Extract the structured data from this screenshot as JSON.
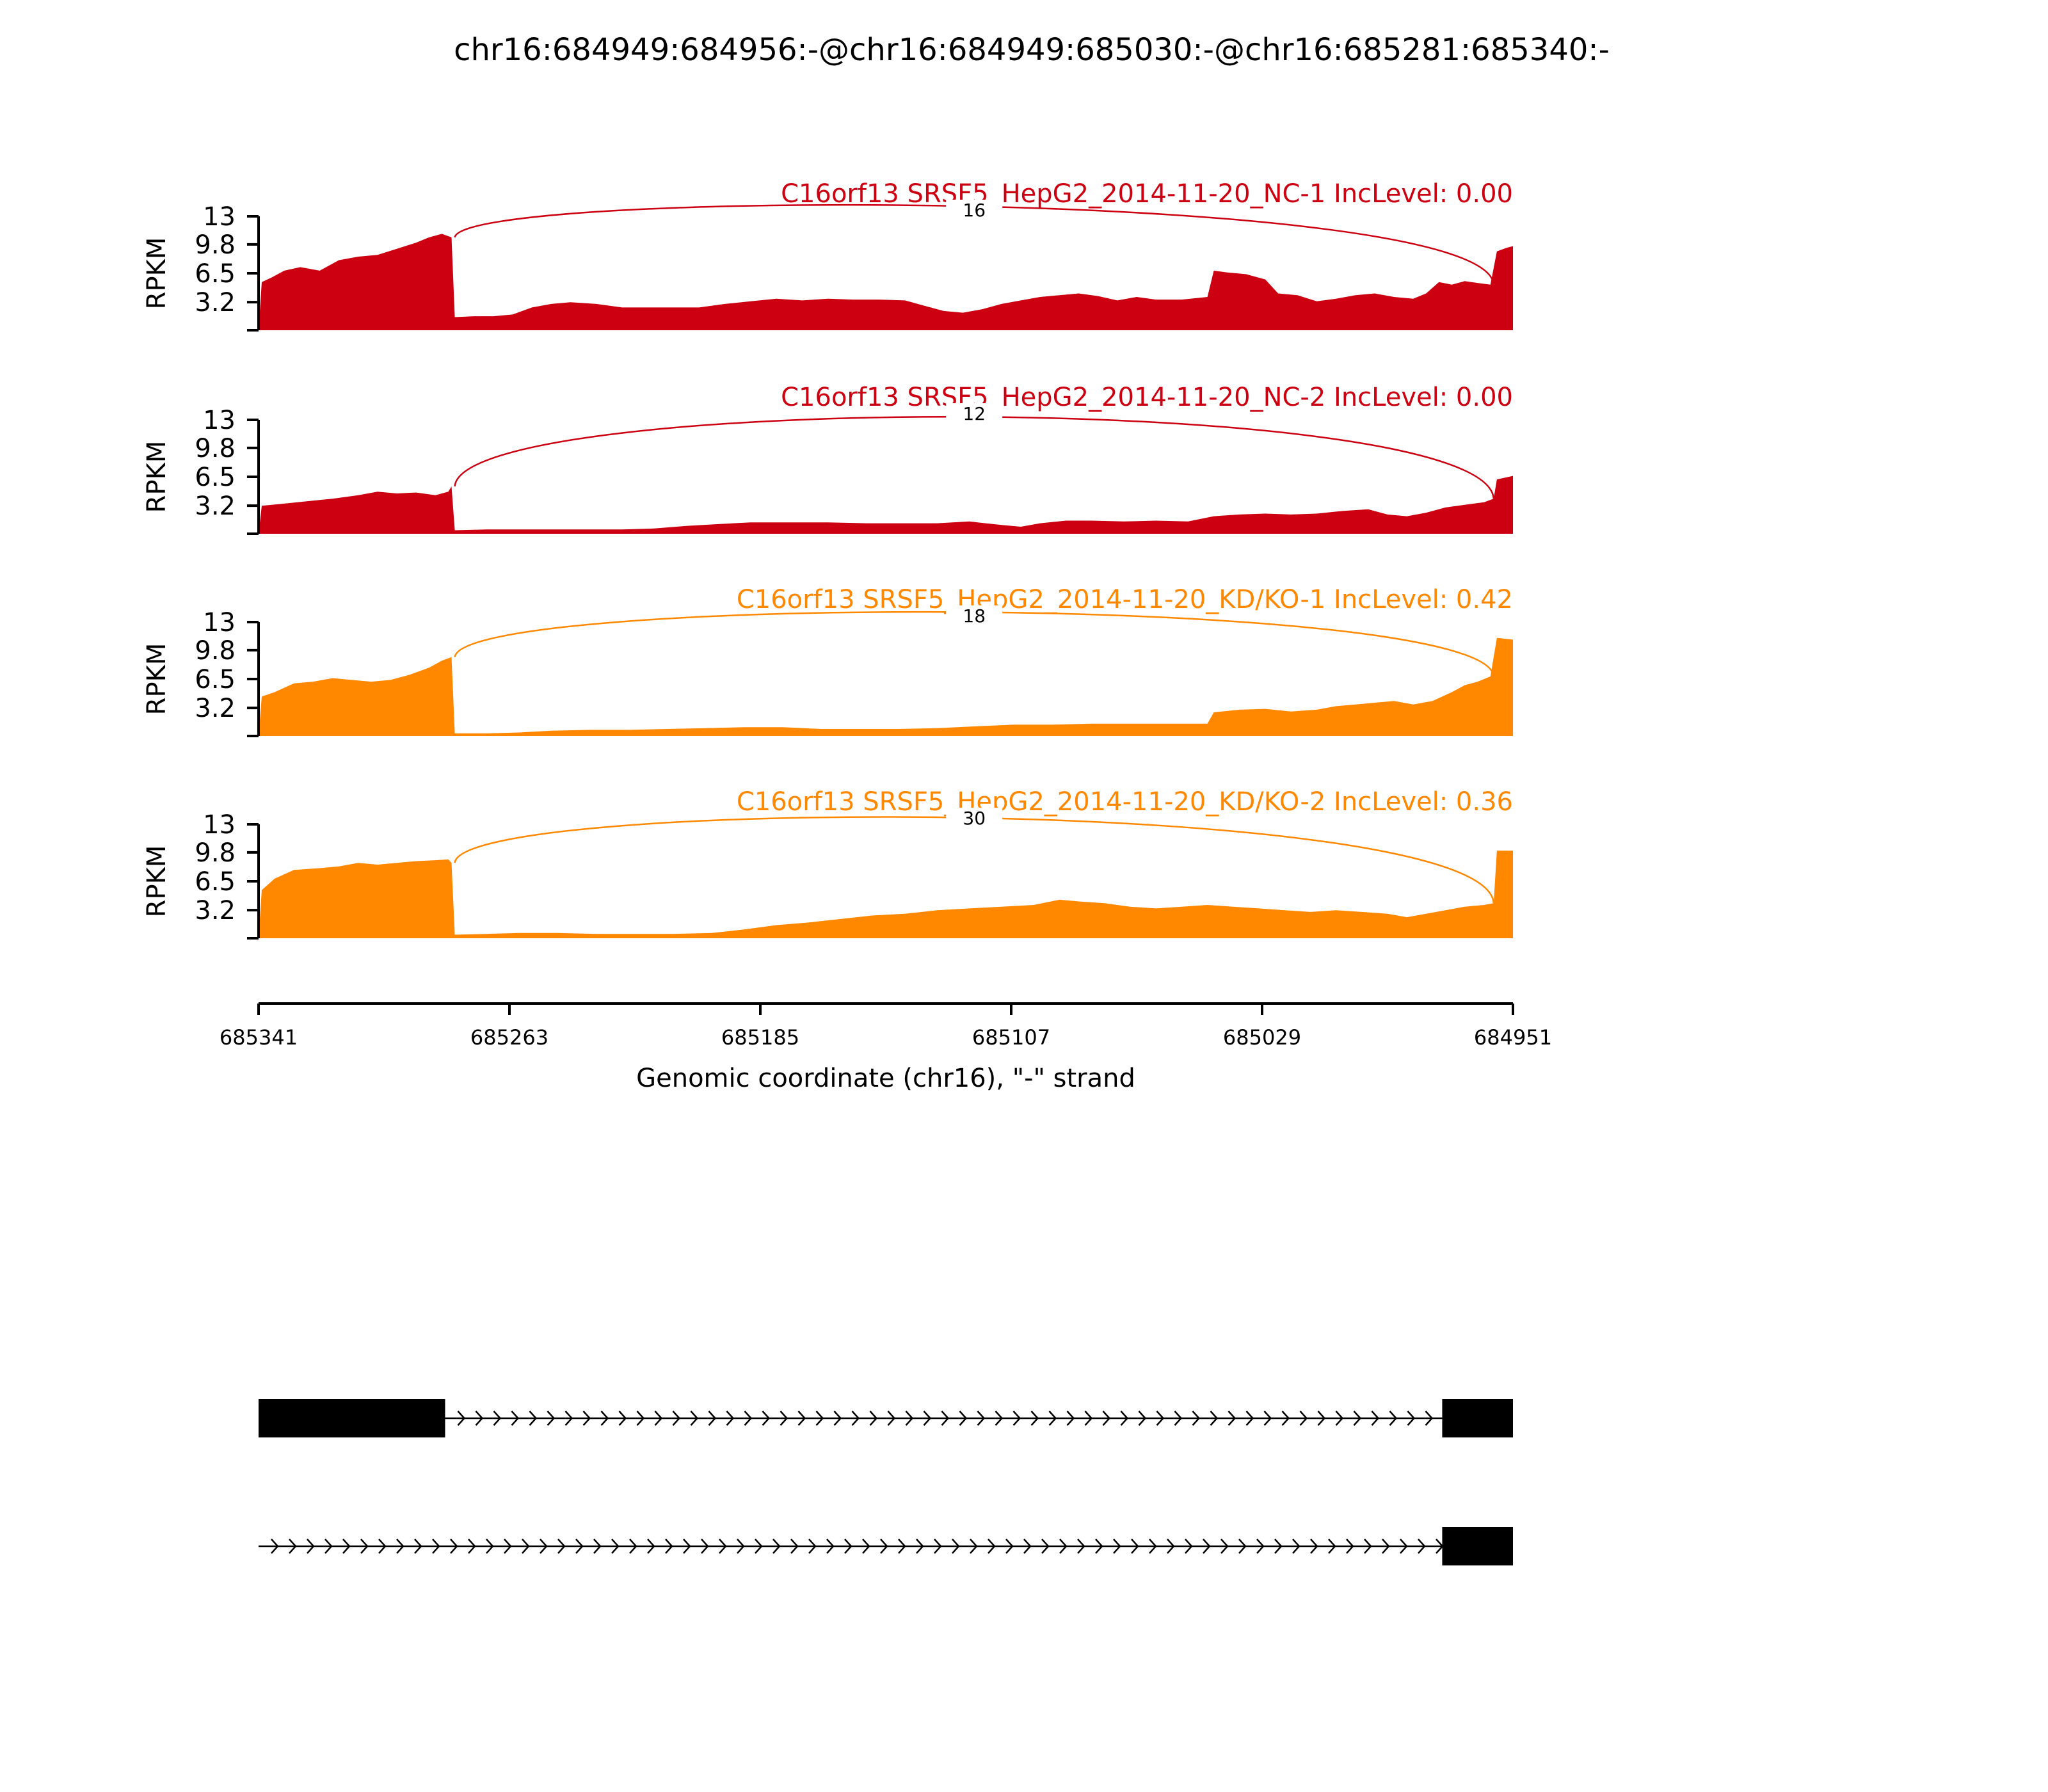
{
  "figure": {
    "title": "chr16:684949:684956:-@chr16:684949:685030:-@chr16:685281:685340:-"
  },
  "chart_data": {
    "type": "area",
    "title": "chr16:684949:684956:-@chr16:684949:685030:-@chr16:685281:685340:-",
    "xlabel": "Genomic coordinate (chr16), \"-\" strand",
    "ylabel": "RPKM",
    "xlim": [
      685341,
      684951
    ],
    "x_reversed": true,
    "ylim": [
      0,
      13
    ],
    "yticks": [
      "3.2",
      "6.5",
      "9.8",
      "13"
    ],
    "xticks": [
      "685341",
      "685263",
      "685185",
      "685107",
      "685029",
      "684951"
    ],
    "grid": false,
    "colors": {
      "NC": "#cc0011",
      "KD": "#ff8800"
    },
    "junction": {
      "from": 685280,
      "to": 684957
    },
    "series": [
      {
        "name": "C16orf13 SRSF5_HepG2_2014-11-20_NC-1 IncLevel: 0.00",
        "color": "#cc0011",
        "junction_count": "16",
        "profile": [
          [
            685341,
            0
          ],
          [
            685340,
            5.5
          ],
          [
            685337,
            6.0
          ],
          [
            685333,
            6.8
          ],
          [
            685328,
            7.2
          ],
          [
            685322,
            6.8
          ],
          [
            685316,
            8.0
          ],
          [
            685310,
            8.4
          ],
          [
            685304,
            8.6
          ],
          [
            685298,
            9.3
          ],
          [
            685292,
            10.0
          ],
          [
            685288,
            10.6
          ],
          [
            685284,
            11.0
          ],
          [
            685281,
            10.6
          ],
          [
            685280,
            1.5
          ],
          [
            685274,
            1.6
          ],
          [
            685268,
            1.6
          ],
          [
            685262,
            1.8
          ],
          [
            685256,
            2.6
          ],
          [
            685250,
            3.0
          ],
          [
            685244,
            3.2
          ],
          [
            685236,
            3.0
          ],
          [
            685228,
            2.6
          ],
          [
            685216,
            2.6
          ],
          [
            685204,
            2.6
          ],
          [
            685196,
            3.0
          ],
          [
            685188,
            3.3
          ],
          [
            685180,
            3.6
          ],
          [
            685172,
            3.4
          ],
          [
            685164,
            3.6
          ],
          [
            685156,
            3.5
          ],
          [
            685148,
            3.5
          ],
          [
            685140,
            3.4
          ],
          [
            685134,
            2.8
          ],
          [
            685128,
            2.2
          ],
          [
            685122,
            2.0
          ],
          [
            685116,
            2.4
          ],
          [
            685110,
            3.0
          ],
          [
            685104,
            3.4
          ],
          [
            685098,
            3.8
          ],
          [
            685092,
            4.0
          ],
          [
            685086,
            4.2
          ],
          [
            685080,
            3.9
          ],
          [
            685074,
            3.4
          ],
          [
            685068,
            3.8
          ],
          [
            685062,
            3.5
          ],
          [
            685054,
            3.5
          ],
          [
            685046,
            3.8
          ],
          [
            685044,
            6.8
          ],
          [
            685040,
            6.6
          ],
          [
            685034,
            6.4
          ],
          [
            685028,
            5.8
          ],
          [
            685024,
            4.2
          ],
          [
            685018,
            4.0
          ],
          [
            685012,
            3.3
          ],
          [
            685006,
            3.6
          ],
          [
            685000,
            4.0
          ],
          [
            684994,
            4.2
          ],
          [
            684988,
            3.8
          ],
          [
            684982,
            3.6
          ],
          [
            684978,
            4.2
          ],
          [
            684974,
            5.5
          ],
          [
            684970,
            5.2
          ],
          [
            684966,
            5.6
          ],
          [
            684962,
            5.4
          ],
          [
            684958,
            5.2
          ],
          [
            684956,
            9.0
          ],
          [
            684953,
            9.4
          ],
          [
            684951,
            9.6
          ]
        ]
      },
      {
        "name": "C16orf13 SRSF5_HepG2_2014-11-20_NC-2 IncLevel: 0.00",
        "color": "#cc0011",
        "junction_count": "12",
        "profile": [
          [
            685341,
            0
          ],
          [
            685340,
            3.2
          ],
          [
            685334,
            3.4
          ],
          [
            685326,
            3.7
          ],
          [
            685318,
            4.0
          ],
          [
            685310,
            4.4
          ],
          [
            685304,
            4.8
          ],
          [
            685298,
            4.6
          ],
          [
            685292,
            4.7
          ],
          [
            685286,
            4.4
          ],
          [
            685282,
            4.8
          ],
          [
            685281,
            5.4
          ],
          [
            685280,
            0.4
          ],
          [
            685270,
            0.5
          ],
          [
            685260,
            0.5
          ],
          [
            685250,
            0.5
          ],
          [
            685240,
            0.5
          ],
          [
            685228,
            0.5
          ],
          [
            685218,
            0.6
          ],
          [
            685208,
            0.9
          ],
          [
            685198,
            1.1
          ],
          [
            685188,
            1.3
          ],
          [
            685176,
            1.3
          ],
          [
            685164,
            1.3
          ],
          [
            685152,
            1.2
          ],
          [
            685140,
            1.2
          ],
          [
            685130,
            1.2
          ],
          [
            685120,
            1.4
          ],
          [
            685110,
            1.0
          ],
          [
            685104,
            0.8
          ],
          [
            685098,
            1.2
          ],
          [
            685090,
            1.5
          ],
          [
            685082,
            1.5
          ],
          [
            685072,
            1.4
          ],
          [
            685062,
            1.5
          ],
          [
            685052,
            1.4
          ],
          [
            685044,
            2.0
          ],
          [
            685036,
            2.2
          ],
          [
            685028,
            2.3
          ],
          [
            685020,
            2.2
          ],
          [
            685012,
            2.3
          ],
          [
            685004,
            2.6
          ],
          [
            684996,
            2.8
          ],
          [
            684990,
            2.2
          ],
          [
            684984,
            2.0
          ],
          [
            684978,
            2.4
          ],
          [
            684972,
            3.0
          ],
          [
            684966,
            3.3
          ],
          [
            684960,
            3.6
          ],
          [
            684957,
            4.0
          ],
          [
            684956,
            6.2
          ],
          [
            684951,
            6.6
          ]
        ]
      },
      {
        "name": "C16orf13 SRSF5_HepG2_2014-11-20_KD/KO-1 IncLevel: 0.42",
        "color": "#ff8800",
        "junction_count": "18",
        "profile": [
          [
            685341,
            0
          ],
          [
            685340,
            4.5
          ],
          [
            685336,
            5.0
          ],
          [
            685330,
            6.0
          ],
          [
            685324,
            6.2
          ],
          [
            685318,
            6.6
          ],
          [
            685312,
            6.4
          ],
          [
            685306,
            6.2
          ],
          [
            685300,
            6.4
          ],
          [
            685294,
            7.0
          ],
          [
            685288,
            7.8
          ],
          [
            685284,
            8.6
          ],
          [
            685281,
            9.0
          ],
          [
            685280,
            0.3
          ],
          [
            685270,
            0.3
          ],
          [
            685260,
            0.4
          ],
          [
            685250,
            0.6
          ],
          [
            685238,
            0.7
          ],
          [
            685226,
            0.7
          ],
          [
            685214,
            0.8
          ],
          [
            685202,
            0.9
          ],
          [
            685190,
            1.0
          ],
          [
            685178,
            1.0
          ],
          [
            685166,
            0.8
          ],
          [
            685154,
            0.8
          ],
          [
            685142,
            0.8
          ],
          [
            685130,
            0.9
          ],
          [
            685118,
            1.1
          ],
          [
            685106,
            1.3
          ],
          [
            685094,
            1.3
          ],
          [
            685082,
            1.4
          ],
          [
            685070,
            1.4
          ],
          [
            685058,
            1.4
          ],
          [
            685046,
            1.4
          ],
          [
            685044,
            2.7
          ],
          [
            685036,
            3.0
          ],
          [
            685028,
            3.1
          ],
          [
            685020,
            2.8
          ],
          [
            685012,
            3.0
          ],
          [
            685006,
            3.4
          ],
          [
            685000,
            3.6
          ],
          [
            684994,
            3.8
          ],
          [
            684988,
            4.0
          ],
          [
            684982,
            3.6
          ],
          [
            684976,
            4.0
          ],
          [
            684970,
            5.0
          ],
          [
            684966,
            5.8
          ],
          [
            684962,
            6.2
          ],
          [
            684958,
            6.8
          ],
          [
            684956,
            11.2
          ],
          [
            684951,
            11.0
          ]
        ]
      },
      {
        "name": "C16orf13 SRSF5_HepG2_2014-11-20_KD/KO-2 IncLevel: 0.36",
        "color": "#ff8800",
        "junction_count": "30",
        "profile": [
          [
            685341,
            0
          ],
          [
            685340,
            5.5
          ],
          [
            685336,
            6.8
          ],
          [
            685330,
            7.8
          ],
          [
            685322,
            8.0
          ],
          [
            685316,
            8.2
          ],
          [
            685310,
            8.6
          ],
          [
            685304,
            8.4
          ],
          [
            685298,
            8.6
          ],
          [
            685292,
            8.8
          ],
          [
            685286,
            8.9
          ],
          [
            685282,
            9.0
          ],
          [
            685281,
            8.6
          ],
          [
            685280,
            0.4
          ],
          [
            685270,
            0.5
          ],
          [
            685260,
            0.6
          ],
          [
            685248,
            0.6
          ],
          [
            685236,
            0.5
          ],
          [
            685224,
            0.5
          ],
          [
            685212,
            0.5
          ],
          [
            685200,
            0.6
          ],
          [
            685190,
            1.0
          ],
          [
            685180,
            1.5
          ],
          [
            685170,
            1.8
          ],
          [
            685160,
            2.2
          ],
          [
            685150,
            2.6
          ],
          [
            685140,
            2.8
          ],
          [
            685130,
            3.2
          ],
          [
            685120,
            3.4
          ],
          [
            685110,
            3.6
          ],
          [
            685100,
            3.8
          ],
          [
            685092,
            4.4
          ],
          [
            685086,
            4.2
          ],
          [
            685078,
            4.0
          ],
          [
            685070,
            3.6
          ],
          [
            685062,
            3.4
          ],
          [
            685054,
            3.6
          ],
          [
            685046,
            3.8
          ],
          [
            685038,
            3.6
          ],
          [
            685030,
            3.4
          ],
          [
            685022,
            3.2
          ],
          [
            685014,
            3.0
          ],
          [
            685006,
            3.2
          ],
          [
            684998,
            3.0
          ],
          [
            684990,
            2.8
          ],
          [
            684984,
            2.4
          ],
          [
            684978,
            2.8
          ],
          [
            684972,
            3.2
          ],
          [
            684966,
            3.6
          ],
          [
            684960,
            3.8
          ],
          [
            684957,
            4.0
          ],
          [
            684956,
            10.0
          ],
          [
            684951,
            10.0
          ]
        ]
      }
    ],
    "transcripts": [
      {
        "exons": [
          [
            685341,
            685283
          ],
          [
            684973,
            684951
          ]
        ],
        "intron": [
          685283,
          684973
        ]
      },
      {
        "exons": [
          [
            684973,
            684951
          ]
        ],
        "intron": [
          685341,
          684973
        ]
      }
    ]
  }
}
